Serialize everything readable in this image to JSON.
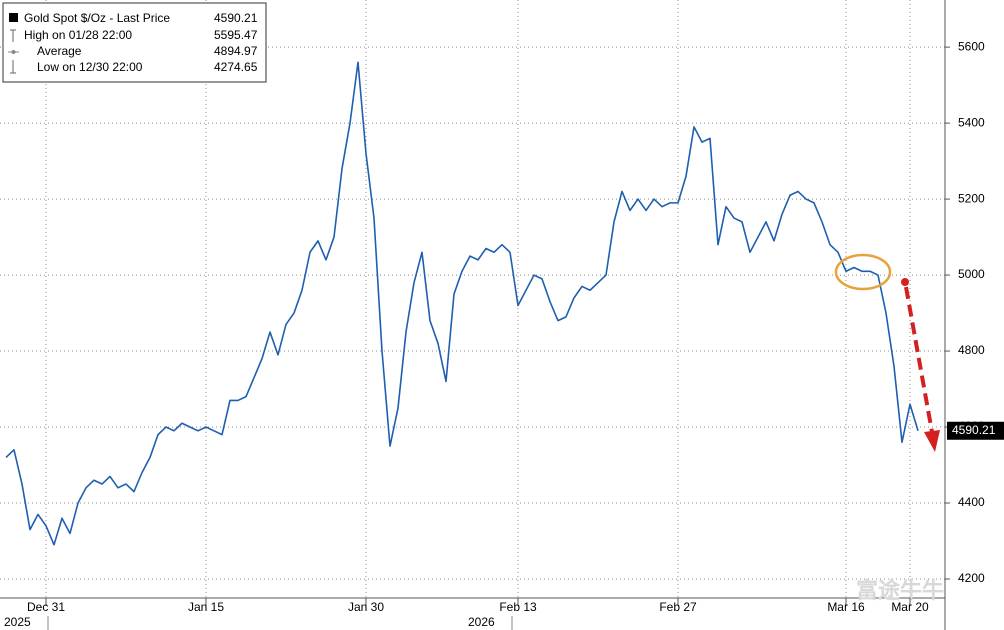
{
  "chart_data": {
    "type": "line",
    "categories": [
      null,
      null,
      null,
      null,
      null,
      "Dec 31",
      null,
      null,
      null,
      null,
      null,
      null,
      null,
      null,
      null,
      null,
      null,
      null,
      null,
      null,
      null,
      null,
      null,
      null,
      null,
      "Jan 15",
      null,
      null,
      null,
      null,
      null,
      null,
      null,
      null,
      null,
      null,
      null,
      null,
      null,
      null,
      null,
      null,
      null,
      null,
      null,
      "Jan 30",
      null,
      null,
      null,
      null,
      null,
      null,
      null,
      null,
      null,
      null,
      null,
      null,
      null,
      null,
      null,
      null,
      null,
      null,
      "Feb 13",
      null,
      null,
      null,
      null,
      null,
      null,
      null,
      null,
      null,
      null,
      null,
      null,
      null,
      null,
      null,
      null,
      null,
      null,
      null,
      "Feb 27",
      null,
      null,
      null,
      null,
      null,
      null,
      null,
      null,
      null,
      null,
      null,
      null,
      null,
      null,
      null,
      null,
      null,
      null,
      null,
      null,
      "Mar 16",
      null,
      null,
      null,
      null,
      null,
      null,
      null,
      "Mar 20",
      null
    ],
    "year_labels": [
      "2025",
      "2026"
    ],
    "series": [
      {
        "name": "Gold Spot $/Oz - Last Price",
        "color": "#1f5fb0",
        "values": [
          4520,
          4540,
          4450,
          4330,
          4370,
          4340,
          4290,
          4360,
          4320,
          4400,
          4440,
          4460,
          4450,
          4470,
          4440,
          4450,
          4430,
          4480,
          4520,
          4580,
          4600,
          4590,
          4610,
          4600,
          4590,
          4600,
          4590,
          4580,
          4670,
          4670,
          4680,
          4730,
          4780,
          4850,
          4790,
          4870,
          4900,
          4960,
          5060,
          5090,
          5040,
          5100,
          5280,
          5400,
          5560,
          5320,
          5150,
          4800,
          4550,
          4650,
          4850,
          4980,
          5060,
          4880,
          4820,
          4720,
          4950,
          5010,
          5050,
          5040,
          5070,
          5060,
          5080,
          5060,
          4920,
          4960,
          5000,
          4990,
          4930,
          4880,
          4890,
          4940,
          4970,
          4960,
          4980,
          5000,
          5140,
          5220,
          5170,
          5200,
          5170,
          5200,
          5180,
          5190,
          5190,
          5260,
          5390,
          5350,
          5360,
          5080,
          5180,
          5150,
          5140,
          5060,
          5100,
          5140,
          5090,
          5160,
          5210,
          5220,
          5200,
          5190,
          5140,
          5080,
          5060,
          5010,
          5020,
          5010,
          5010,
          5000,
          4900,
          4760,
          4560,
          4660,
          4590.21
        ]
      }
    ],
    "last_price": 4590.21,
    "stats": [
      {
        "label": "High on 01/28 22:00",
        "value": 5595.47
      },
      {
        "label": "Average",
        "value": 4894.97
      },
      {
        "label": "Low on 12/30 22:00",
        "value": 4274.65
      }
    ],
    "ylim": [
      4150,
      5724
    ],
    "yticks": [
      4200,
      4400,
      4600,
      4800,
      5000,
      5200,
      5400,
      5600
    ],
    "y_axis_side": "right",
    "grid": true,
    "watermark": "富途牛牛"
  }
}
